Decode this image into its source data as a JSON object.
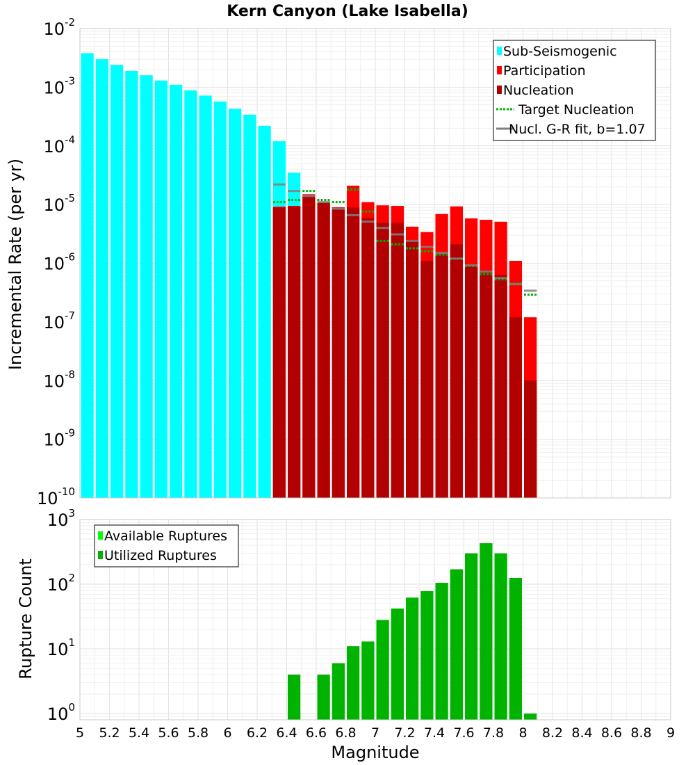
{
  "chart_data": [
    {
      "type": "bar",
      "title": "Kern Canyon (Lake Isabella)",
      "xlabel": "",
      "ylabel": "Incremental Rate (per yr)",
      "yscale": "log",
      "xlim": [
        5,
        9
      ],
      "ylim": [
        1e-10,
        0.01
      ],
      "grid": true,
      "legend_position": "top-right",
      "y_tick_labels": [
        {
          "base": "10",
          "exp": "-2",
          "value": 0.01
        },
        {
          "base": "10",
          "exp": "-3",
          "value": 0.001
        },
        {
          "base": "10",
          "exp": "-4",
          "value": 0.0001
        },
        {
          "base": "10",
          "exp": "-5",
          "value": 1e-05
        },
        {
          "base": "10",
          "exp": "-6",
          "value": 1e-06
        },
        {
          "base": "10",
          "exp": "-7",
          "value": 1e-07
        },
        {
          "base": "10",
          "exp": "-8",
          "value": 1e-08
        },
        {
          "base": "10",
          "exp": "-9",
          "value": 1e-09
        },
        {
          "base": "10",
          "exp": "-10",
          "value": 1e-10
        }
      ],
      "legend": [
        {
          "label": "Sub-Seismogenic",
          "color": "#00ffff",
          "style": "box"
        },
        {
          "label": "Participation",
          "color": "#ff0000",
          "style": "box"
        },
        {
          "label": "Nucleation",
          "color": "#b20000",
          "style": "box"
        },
        {
          "label": "Target Nucleation",
          "color": "#00b300",
          "style": "dotted"
        },
        {
          "label": "Nucl. G-R fit, b=1.07",
          "color": "#808080",
          "style": "line"
        }
      ],
      "series": [
        {
          "name": "Sub-Seismogenic",
          "color": "#00ffff",
          "x": [
            5.05,
            5.15,
            5.25,
            5.35,
            5.45,
            5.55,
            5.65,
            5.75,
            5.85,
            5.95,
            6.05,
            6.15,
            6.25,
            6.35,
            6.45
          ],
          "values": [
            0.0038,
            0.003,
            0.0024,
            0.0019,
            0.0016,
            0.0013,
            0.0011,
            0.00088,
            0.00072,
            0.00057,
            0.00043,
            0.00034,
            0.00022,
            0.00012,
            3.5e-05
          ]
        },
        {
          "name": "Participation",
          "color": "#ff0000",
          "x": [
            6.35,
            6.45,
            6.55,
            6.65,
            6.75,
            6.85,
            6.95,
            7.05,
            7.15,
            7.25,
            7.35,
            7.45,
            7.55,
            7.65,
            7.75,
            7.85,
            7.95,
            8.05
          ],
          "values": [
            9.2e-06,
            9.5e-06,
            1.5e-05,
            1.1e-05,
            9e-06,
            2.1e-05,
            1.1e-05,
            9.7e-06,
            9.5e-06,
            4.2e-06,
            3.4e-06,
            6.9e-06,
            9.3e-06,
            5.8e-06,
            5.5e-06,
            5.1e-06,
            1.1e-06,
            1.2e-07
          ]
        },
        {
          "name": "Nucleation",
          "color": "#b20000",
          "x": [
            6.35,
            6.45,
            6.55,
            6.65,
            6.75,
            6.85,
            6.95,
            7.05,
            7.15,
            7.25,
            7.35,
            7.45,
            7.55,
            7.65,
            7.75,
            7.85,
            7.95,
            8.05
          ],
          "values": [
            8.9e-06,
            9.2e-06,
            1.4e-05,
            1.1e-05,
            8.5e-06,
            8.9e-06,
            5.9e-06,
            4.9e-06,
            4.9e-06,
            2.5e-06,
            1.1e-06,
            1.5e-06,
            2.1e-06,
            9.5e-07,
            7.5e-07,
            6.3e-07,
            1.2e-07,
            1e-08
          ]
        },
        {
          "name": "Target Nucleation",
          "color": "#00b300",
          "x": [
            6.35,
            6.45,
            6.55,
            6.65,
            6.75,
            6.85,
            6.95,
            7.05,
            7.15,
            7.25,
            7.35,
            7.45,
            7.55,
            7.65,
            7.75,
            7.85,
            7.95,
            8.05
          ],
          "values": [
            1.1e-05,
            1.2e-05,
            1.7e-05,
            1.2e-05,
            1.1e-05,
            1.8e-05,
            7.6e-06,
            2.4e-06,
            2.1e-06,
            1.8e-06,
            1.6e-06,
            1.4e-06,
            1.2e-06,
            9e-07,
            6.5e-07,
            5.3e-07,
            4.5e-07,
            2.9e-07
          ]
        },
        {
          "name": "Nucl. G-R fit, b=1.07",
          "color": "#808080",
          "x": [
            6.35,
            6.45,
            6.55,
            6.65,
            6.75,
            6.85,
            6.95,
            7.05,
            7.15,
            7.25,
            7.35,
            7.45,
            7.55,
            7.65,
            7.75,
            7.85,
            7.95,
            8.05
          ],
          "values": [
            2.2e-05,
            1.7e-05,
            1.4e-05,
            1.1e-05,
            8.5e-06,
            6.6e-06,
            5.1e-06,
            4e-06,
            3.1e-06,
            2.4e-06,
            1.9e-06,
            1.5e-06,
            1.2e-06,
            9.2e-07,
            7.2e-07,
            5.6e-07,
            4.4e-07,
            3.4e-07
          ]
        }
      ]
    },
    {
      "type": "bar",
      "title": "",
      "xlabel": "Magnitude",
      "ylabel": "Rupture Count",
      "yscale": "log",
      "xlim": [
        5,
        9
      ],
      "ylim": [
        0.8,
        1000
      ],
      "grid": true,
      "legend_position": "top-left",
      "y_tick_labels": [
        {
          "base": "10",
          "exp": "3",
          "value": 1000
        },
        {
          "base": "10",
          "exp": "2",
          "value": 100
        },
        {
          "base": "10",
          "exp": "1",
          "value": 10
        },
        {
          "base": "10",
          "exp": "0",
          "value": 1
        }
      ],
      "x_tick_labels": [
        "5",
        "5.2",
        "5.4",
        "5.6",
        "5.8",
        "6",
        "6.2",
        "6.4",
        "6.6",
        "6.8",
        "7",
        "7.2",
        "7.4",
        "7.6",
        "7.8",
        "8",
        "8.2",
        "8.4",
        "8.6",
        "8.8",
        "9"
      ],
      "legend": [
        {
          "label": "Available Ruptures",
          "color": "#00ff00",
          "style": "box"
        },
        {
          "label": "Utilized Ruptures",
          "color": "#00b300",
          "style": "box"
        }
      ],
      "series": [
        {
          "name": "Utilized Ruptures",
          "color": "#00b300",
          "x": [
            6.45,
            6.65,
            6.75,
            6.85,
            6.95,
            7.05,
            7.15,
            7.25,
            7.35,
            7.45,
            7.55,
            7.65,
            7.75,
            7.85,
            7.95,
            8.05
          ],
          "values": [
            4,
            4,
            6,
            11,
            13,
            28,
            42,
            62,
            78,
            105,
            170,
            300,
            430,
            300,
            125,
            1
          ]
        }
      ]
    }
  ]
}
